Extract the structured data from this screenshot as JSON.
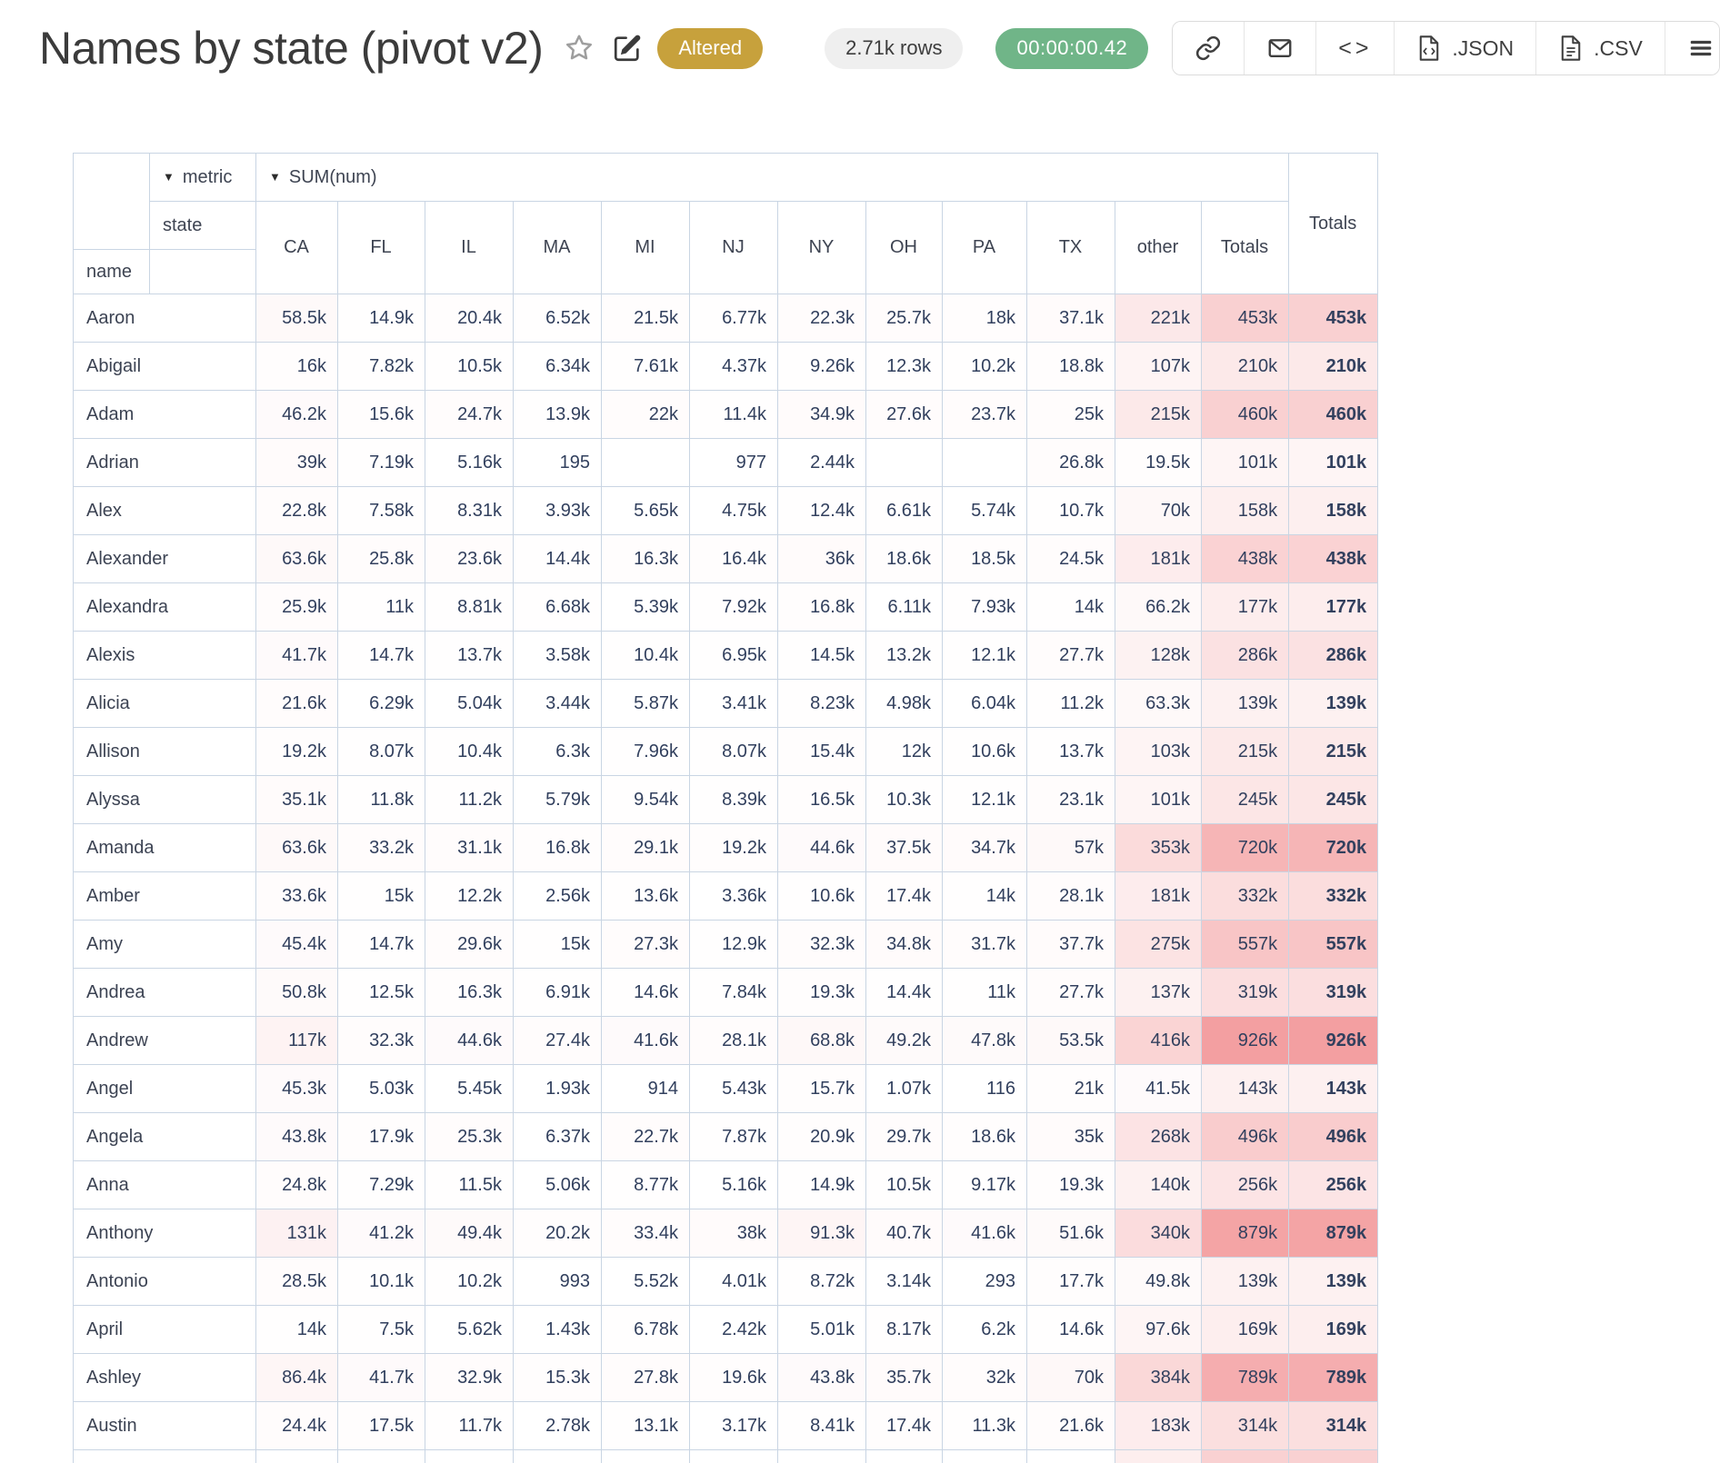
{
  "header": {
    "title": "Names by state (pivot v2)",
    "altered_badge": "Altered",
    "rows_count": "2.71k rows",
    "elapsed_time": "00:00:00.42",
    "embed_label": "<>",
    "export_json_label": ".JSON",
    "export_csv_label": ".CSV"
  },
  "colors": {
    "badge_gold": "#c7a13c",
    "pill_gray": "#efefef",
    "timer_green": "#70b588",
    "grid": "#c9d5e3",
    "heat_base": "#eb5a5d",
    "cell_text": "#32405e"
  },
  "icons": {
    "favorite": "star-icon",
    "edit": "edit-pencil-icon",
    "link": "link-icon",
    "email": "envelope-icon",
    "embed": "code-icon",
    "json_file": "file-code-icon",
    "csv_file": "file-text-icon",
    "menu": "hamburger-menu-icon"
  },
  "pivot": {
    "dropdown_icon": "▼",
    "metric_label": "metric",
    "value_label": "SUM(num)",
    "col_dim": "state",
    "row_dim": "name",
    "totals_label": "Totals",
    "heat_max": 926000,
    "columns": [
      "CA",
      "FL",
      "IL",
      "MA",
      "MI",
      "NJ",
      "NY",
      "OH",
      "PA",
      "TX",
      "other",
      "Totals"
    ],
    "rows": [
      {
        "name": "Aaron",
        "cells": [
          "58.5k",
          "14.9k",
          "20.4k",
          "6.52k",
          "21.5k",
          "6.77k",
          "22.3k",
          "25.7k",
          "18k",
          "37.1k",
          "221k",
          "453k"
        ],
        "total": "453k"
      },
      {
        "name": "Abigail",
        "cells": [
          "16k",
          "7.82k",
          "10.5k",
          "6.34k",
          "7.61k",
          "4.37k",
          "9.26k",
          "12.3k",
          "10.2k",
          "18.8k",
          "107k",
          "210k"
        ],
        "total": "210k"
      },
      {
        "name": "Adam",
        "cells": [
          "46.2k",
          "15.6k",
          "24.7k",
          "13.9k",
          "22k",
          "11.4k",
          "34.9k",
          "27.6k",
          "23.7k",
          "25k",
          "215k",
          "460k"
        ],
        "total": "460k"
      },
      {
        "name": "Adrian",
        "cells": [
          "39k",
          "7.19k",
          "5.16k",
          "195",
          "",
          "977",
          "2.44k",
          "",
          "",
          "26.8k",
          "19.5k",
          "101k"
        ],
        "total": "101k"
      },
      {
        "name": "Alex",
        "cells": [
          "22.8k",
          "7.58k",
          "8.31k",
          "3.93k",
          "5.65k",
          "4.75k",
          "12.4k",
          "6.61k",
          "5.74k",
          "10.7k",
          "70k",
          "158k"
        ],
        "total": "158k"
      },
      {
        "name": "Alexander",
        "cells": [
          "63.6k",
          "25.8k",
          "23.6k",
          "14.4k",
          "16.3k",
          "16.4k",
          "36k",
          "18.6k",
          "18.5k",
          "24.5k",
          "181k",
          "438k"
        ],
        "total": "438k"
      },
      {
        "name": "Alexandra",
        "cells": [
          "25.9k",
          "11k",
          "8.81k",
          "6.68k",
          "5.39k",
          "7.92k",
          "16.8k",
          "6.11k",
          "7.93k",
          "14k",
          "66.2k",
          "177k"
        ],
        "total": "177k"
      },
      {
        "name": "Alexis",
        "cells": [
          "41.7k",
          "14.7k",
          "13.7k",
          "3.58k",
          "10.4k",
          "6.95k",
          "14.5k",
          "13.2k",
          "12.1k",
          "27.7k",
          "128k",
          "286k"
        ],
        "total": "286k"
      },
      {
        "name": "Alicia",
        "cells": [
          "21.6k",
          "6.29k",
          "5.04k",
          "3.44k",
          "5.87k",
          "3.41k",
          "8.23k",
          "4.98k",
          "6.04k",
          "11.2k",
          "63.3k",
          "139k"
        ],
        "total": "139k"
      },
      {
        "name": "Allison",
        "cells": [
          "19.2k",
          "8.07k",
          "10.4k",
          "6.3k",
          "7.96k",
          "8.07k",
          "15.4k",
          "12k",
          "10.6k",
          "13.7k",
          "103k",
          "215k"
        ],
        "total": "215k"
      },
      {
        "name": "Alyssa",
        "cells": [
          "35.1k",
          "11.8k",
          "11.2k",
          "5.79k",
          "9.54k",
          "8.39k",
          "16.5k",
          "10.3k",
          "12.1k",
          "23.1k",
          "101k",
          "245k"
        ],
        "total": "245k"
      },
      {
        "name": "Amanda",
        "cells": [
          "63.6k",
          "33.2k",
          "31.1k",
          "16.8k",
          "29.1k",
          "19.2k",
          "44.6k",
          "37.5k",
          "34.7k",
          "57k",
          "353k",
          "720k"
        ],
        "total": "720k"
      },
      {
        "name": "Amber",
        "cells": [
          "33.6k",
          "15k",
          "12.2k",
          "2.56k",
          "13.6k",
          "3.36k",
          "10.6k",
          "17.4k",
          "14k",
          "28.1k",
          "181k",
          "332k"
        ],
        "total": "332k"
      },
      {
        "name": "Amy",
        "cells": [
          "45.4k",
          "14.7k",
          "29.6k",
          "15k",
          "27.3k",
          "12.9k",
          "32.3k",
          "34.8k",
          "31.7k",
          "37.7k",
          "275k",
          "557k"
        ],
        "total": "557k"
      },
      {
        "name": "Andrea",
        "cells": [
          "50.8k",
          "12.5k",
          "16.3k",
          "6.91k",
          "14.6k",
          "7.84k",
          "19.3k",
          "14.4k",
          "11k",
          "27.7k",
          "137k",
          "319k"
        ],
        "total": "319k"
      },
      {
        "name": "Andrew",
        "cells": [
          "117k",
          "32.3k",
          "44.6k",
          "27.4k",
          "41.6k",
          "28.1k",
          "68.8k",
          "49.2k",
          "47.8k",
          "53.5k",
          "416k",
          "926k"
        ],
        "total": "926k"
      },
      {
        "name": "Angel",
        "cells": [
          "45.3k",
          "5.03k",
          "5.45k",
          "1.93k",
          "914",
          "5.43k",
          "15.7k",
          "1.07k",
          "116",
          "21k",
          "41.5k",
          "143k"
        ],
        "total": "143k"
      },
      {
        "name": "Angela",
        "cells": [
          "43.8k",
          "17.9k",
          "25.3k",
          "6.37k",
          "22.7k",
          "7.87k",
          "20.9k",
          "29.7k",
          "18.6k",
          "35k",
          "268k",
          "496k"
        ],
        "total": "496k"
      },
      {
        "name": "Anna",
        "cells": [
          "24.8k",
          "7.29k",
          "11.5k",
          "5.06k",
          "8.77k",
          "5.16k",
          "14.9k",
          "10.5k",
          "9.17k",
          "19.3k",
          "140k",
          "256k"
        ],
        "total": "256k"
      },
      {
        "name": "Anthony",
        "cells": [
          "131k",
          "41.2k",
          "49.4k",
          "20.2k",
          "33.4k",
          "38k",
          "91.3k",
          "40.7k",
          "41.6k",
          "51.6k",
          "340k",
          "879k"
        ],
        "total": "879k"
      },
      {
        "name": "Antonio",
        "cells": [
          "28.5k",
          "10.1k",
          "10.2k",
          "993",
          "5.52k",
          "4.01k",
          "8.72k",
          "3.14k",
          "293",
          "17.7k",
          "49.8k",
          "139k"
        ],
        "total": "139k"
      },
      {
        "name": "April",
        "cells": [
          "14k",
          "7.5k",
          "5.62k",
          "1.43k",
          "6.78k",
          "2.42k",
          "5.01k",
          "8.17k",
          "6.2k",
          "14.6k",
          "97.6k",
          "169k"
        ],
        "total": "169k"
      },
      {
        "name": "Ashley",
        "cells": [
          "86.4k",
          "41.7k",
          "32.9k",
          "15.3k",
          "27.8k",
          "19.6k",
          "43.8k",
          "35.7k",
          "32k",
          "70k",
          "384k",
          "789k"
        ],
        "total": "789k"
      },
      {
        "name": "Austin",
        "cells": [
          "24.4k",
          "17.5k",
          "11.7k",
          "2.78k",
          "13.1k",
          "3.17k",
          "8.41k",
          "17.4k",
          "11.3k",
          "21.6k",
          "183k",
          "314k"
        ],
        "total": "314k"
      }
    ]
  }
}
